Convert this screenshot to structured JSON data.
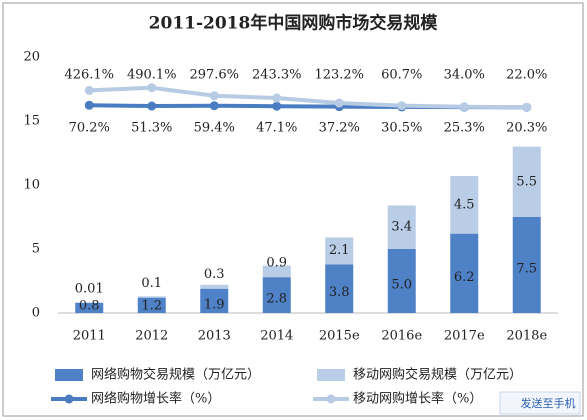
{
  "chart_data": {
    "type": "bar-line",
    "title": "2011-2018年中国网购市场交易规模",
    "categories": [
      "2011",
      "2012",
      "2013",
      "2014",
      "2015e",
      "2016e",
      "2017e",
      "2018e"
    ],
    "ylim": [
      0,
      20
    ],
    "yticks": [
      0,
      5,
      10,
      15,
      20
    ],
    "y2lim": [
      -4900,
      1225
    ],
    "series": [
      {
        "name": "网络购物交易规模（万亿元）",
        "kind": "bar",
        "color": "#4f81c7",
        "values": [
          0.8,
          1.2,
          1.9,
          2.8,
          3.8,
          5.0,
          6.2,
          7.5
        ],
        "value_labels": [
          "0.8",
          "1.2",
          "1.9",
          "2.8",
          "3.8",
          "5.0",
          "6.2",
          "7.5"
        ]
      },
      {
        "name": "移动网购交易规模（万亿元）",
        "kind": "bar",
        "color": "#b9cde6",
        "values": [
          0.01,
          0.1,
          0.3,
          0.9,
          2.1,
          3.4,
          4.5,
          5.5
        ],
        "value_labels": [
          "0.01",
          "0.1",
          "0.3",
          "0.9",
          "2.1",
          "3.4",
          "4.5",
          "5.5"
        ]
      },
      {
        "name": "网络购物增长率（%）",
        "kind": "line",
        "axis": "y2",
        "color": "#4a7cc2",
        "values": [
          70.2,
          51.3,
          59.4,
          47.1,
          37.2,
          30.5,
          25.3,
          20.3
        ],
        "value_labels": [
          "70.2%",
          "51.3%",
          "59.4%",
          "47.1%",
          "37.2%",
          "30.5%",
          "25.3%",
          "20.3%"
        ]
      },
      {
        "name": "移动网购增长率（%）",
        "kind": "line",
        "axis": "y2",
        "color": "#b8cbe4",
        "values": [
          426.1,
          490.1,
          297.6,
          243.3,
          123.2,
          60.7,
          34.0,
          22.0
        ],
        "value_labels": [
          "426.1%",
          "490.1%",
          "297.6%",
          "243.3%",
          "123.2%",
          "60.7%",
          "34.0%",
          "22.0%"
        ]
      }
    ]
  },
  "watermark": "发送至手机"
}
